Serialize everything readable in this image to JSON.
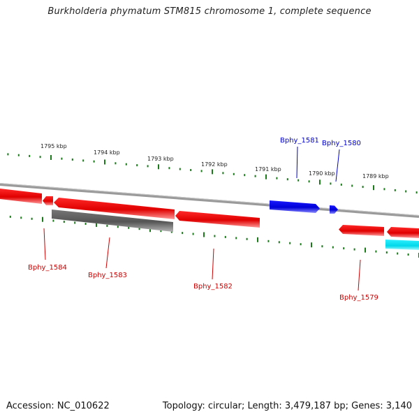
{
  "title": "Burkholderia phymatum STM815 chromosome 1, complete sequence",
  "footer": {
    "accession": "Accession: NC_010622",
    "summary": "Topology: circular; Length: 3,479,187 bp; Genes: 3,140"
  },
  "colors": {
    "backbone": "#8a8a8a",
    "tick": "#1a7a1a",
    "forward_gene": "#0000e0",
    "reverse_gene": "#e00000",
    "pseudo_gene": "#5a5a5a",
    "rna_gene": "#00e0f0",
    "forward_label": "#0000cc",
    "reverse_label": "#cc0000"
  },
  "ruler": {
    "labels": [
      "1795 kbp",
      "1794 kbp",
      "1793 kbp",
      "1792 kbp",
      "1791 kbp",
      "1790 kbp",
      "1789 kbp"
    ]
  },
  "genes": [
    {
      "label": "Bphy_1581",
      "strand": "forward"
    },
    {
      "label": "Bphy_1580",
      "strand": "forward"
    },
    {
      "label": "Bphy_1584",
      "strand": "reverse"
    },
    {
      "label": "Bphy_1583",
      "strand": "reverse"
    },
    {
      "label": "Bphy_1582",
      "strand": "reverse"
    },
    {
      "label": "Bphy_1579",
      "strand": "reverse"
    }
  ]
}
